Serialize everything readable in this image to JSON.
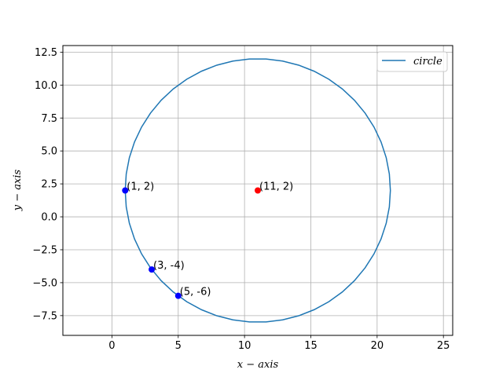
{
  "chart_data": {
    "type": "line",
    "title": "",
    "xlabel": "x − axis",
    "ylabel": "y − axis",
    "xlim": [
      -3.7,
      25.7
    ],
    "ylim": [
      -9.0,
      13.0
    ],
    "xticks": [
      0,
      5,
      10,
      15,
      20,
      25
    ],
    "yticks": [
      -7.5,
      -5.0,
      -2.5,
      0.0,
      2.5,
      5.0,
      7.5,
      10.0,
      12.5
    ],
    "xtick_labels": [
      "0",
      "5",
      "10",
      "15",
      "20",
      "25"
    ],
    "ytick_labels": [
      "−7.5",
      "−5.0",
      "−2.5",
      "0.0",
      "2.5",
      "5.0",
      "7.5",
      "10.0",
      "12.5"
    ],
    "grid": true,
    "legend_position": "top-right",
    "series": [
      {
        "name": "circle",
        "kind": "line",
        "color": "#1f77b4",
        "center": [
          11,
          2
        ],
        "radius": 10
      }
    ],
    "points": [
      {
        "x": 1,
        "y": 2,
        "label": "(1, 2)",
        "color": "#0000ff"
      },
      {
        "x": 3,
        "y": -4,
        "label": "(3, -4)",
        "color": "#0000ff"
      },
      {
        "x": 5,
        "y": -6,
        "label": "(5, -6)",
        "color": "#0000ff"
      },
      {
        "x": 11,
        "y": 2,
        "label": "(11, 2)",
        "color": "#ff0000"
      }
    ]
  }
}
